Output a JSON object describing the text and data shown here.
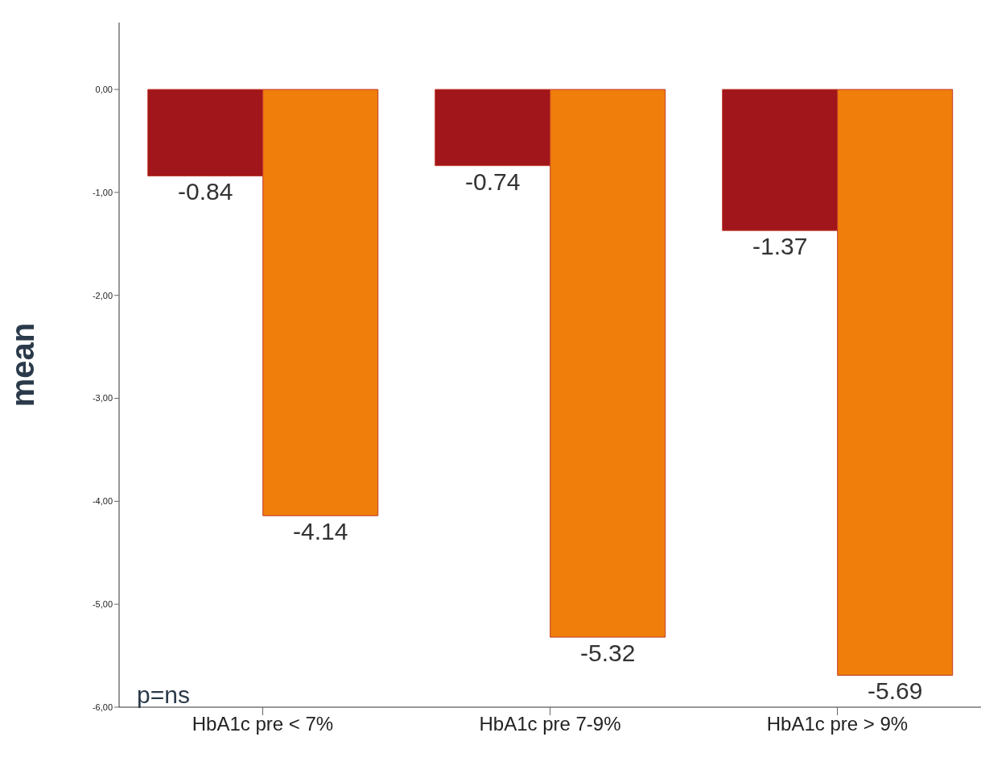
{
  "chart_data": {
    "type": "bar",
    "ylabel": "mean",
    "categories": [
      "HbA1c pre < 7%",
      "HbA1c pre 7-9%",
      "HbA1c pre > 9%"
    ],
    "series": [
      {
        "color": "#a0161a",
        "values": [
          -0.84,
          -0.74,
          -1.37
        ]
      },
      {
        "color": "#ef7f0a",
        "values": [
          -4.14,
          -5.32,
          -5.69
        ]
      }
    ],
    "ylim": [
      -6,
      0.65
    ],
    "yticks": [
      {
        "value": 0,
        "label": "0,00"
      },
      {
        "value": -1,
        "label": "-1,00"
      },
      {
        "value": -2,
        "label": "-2,00"
      },
      {
        "value": -3,
        "label": "-3,00"
      },
      {
        "value": -4,
        "label": "-4,00"
      },
      {
        "value": -5,
        "label": "-5,00"
      },
      {
        "value": -6,
        "label": "-6,00"
      }
    ],
    "data_labels": true,
    "grid": false,
    "legend": false,
    "annotations": [
      "p=ns"
    ]
  }
}
